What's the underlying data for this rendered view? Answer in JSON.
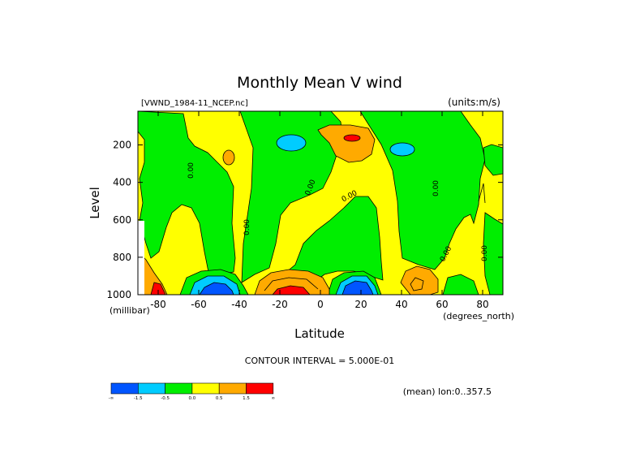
{
  "chart_data": {
    "type": "contour",
    "title": "Monthly Mean V wind",
    "file_label": "[VWND_1984-11_NCEP.nc]",
    "units_label": "(units:m/s)",
    "xlabel": "Latitude",
    "x_units": "(degrees_north)",
    "ylabel": "Level",
    "y_units": "(millibar)",
    "xlim": [
      -90,
      90
    ],
    "ylim": [
      1000,
      20
    ],
    "x_ticks": [
      -80,
      -60,
      -40,
      -20,
      0,
      20,
      40,
      60,
      80
    ],
    "x_tick_labels": [
      "-80",
      "-60",
      "-40",
      "-20",
      "0",
      "20",
      "40",
      "60",
      "80"
    ],
    "y_ticks": [
      200,
      400,
      600,
      800,
      1000
    ],
    "y_tick_labels": [
      "200",
      "400",
      "600",
      "800",
      "1000"
    ],
    "contour_interval_text": "CONTOUR INTERVAL = 5.000E-01",
    "mean_text": "(mean) lon:0..357.5",
    "zero_contour_label": "0.00",
    "colorbar": {
      "colors": [
        "#0055ff",
        "#00ccff",
        "#00ee00",
        "#ffff00",
        "#ffaa00",
        "#ff0000"
      ],
      "labels": [
        "-∞",
        "-1.5",
        "-0.5",
        "0.0",
        "0.5",
        "1.5",
        "∞"
      ]
    }
  }
}
